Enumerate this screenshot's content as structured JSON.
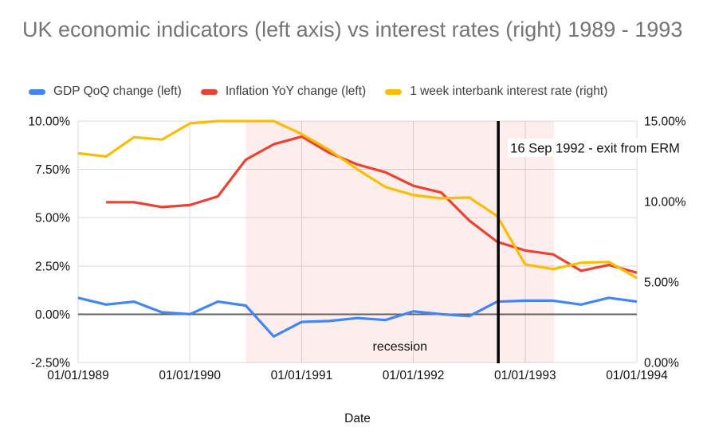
{
  "chart_data": {
    "type": "line",
    "title": "UK economic indicators (left axis) vs interest rates (right) 1989 - 1993",
    "x_axis": {
      "label": "Date",
      "tick_labels": [
        "01/01/1989",
        "01/01/1990",
        "01/01/1991",
        "01/01/1992",
        "01/01/1993",
        "01/01/1994"
      ],
      "tick_years": [
        1989,
        1990,
        1991,
        1992,
        1993,
        1994
      ],
      "range_years": [
        1989,
        1994
      ]
    },
    "left_axis": {
      "tick_labels": [
        "10.00%",
        "7.50%",
        "5.00%",
        "2.50%",
        "0.00%",
        "-2.50%"
      ],
      "tick_values": [
        10,
        7.5,
        5,
        2.5,
        0,
        -2.5
      ],
      "range": [
        -2.5,
        10
      ],
      "zero_line_value": 0
    },
    "right_axis": {
      "tick_labels": [
        "15.00%",
        "10.00%",
        "5.00%",
        "0.00%"
      ],
      "tick_values": [
        15,
        10,
        5,
        0
      ],
      "range": [
        0,
        15
      ]
    },
    "grid": {
      "color": "#D9D9D9",
      "zero_line_color": "#616161"
    },
    "series": [
      {
        "name": "GDP QoQ change (left)",
        "axis": "left",
        "color": "#4285F4",
        "x_years": [
          1989.0,
          1989.25,
          1989.5,
          1989.75,
          1990.0,
          1990.25,
          1990.5,
          1990.75,
          1991.0,
          1991.25,
          1991.5,
          1991.75,
          1992.0,
          1992.25,
          1992.5,
          1992.75,
          1993.0,
          1993.25,
          1993.5,
          1993.75,
          1994.0
        ],
        "values": [
          0.85,
          0.5,
          0.65,
          0.1,
          0.0,
          0.65,
          0.45,
          -1.15,
          -0.4,
          -0.35,
          -0.2,
          -0.3,
          0.15,
          0.0,
          -0.1,
          0.65,
          0.7,
          0.7,
          0.5,
          0.85,
          0.65
        ]
      },
      {
        "name": "Inflation YoY change (left)",
        "axis": "left",
        "color": "#EA4335",
        "x_years": [
          1989.25,
          1989.5,
          1989.75,
          1990.0,
          1990.25,
          1990.5,
          1990.75,
          1991.0,
          1991.25,
          1991.5,
          1991.75,
          1992.0,
          1992.25,
          1992.5,
          1992.75,
          1993.0,
          1993.25,
          1993.5,
          1993.75,
          1994.0
        ],
        "values": [
          5.8,
          5.8,
          5.55,
          5.65,
          6.1,
          8.0,
          8.8,
          9.2,
          8.35,
          7.75,
          7.35,
          6.65,
          6.3,
          4.85,
          3.75,
          3.3,
          3.1,
          2.25,
          2.55,
          2.15
        ]
      },
      {
        "name": "1 week interbank interest rate (right)",
        "axis": "right",
        "color": "#FBBC04",
        "x_years": [
          1989.0,
          1989.25,
          1989.5,
          1989.75,
          1990.0,
          1990.25,
          1990.5,
          1990.75,
          1991.0,
          1991.25,
          1991.5,
          1991.75,
          1992.0,
          1992.25,
          1992.5,
          1992.75,
          1993.0,
          1993.25,
          1993.5,
          1993.75,
          1994.0
        ],
        "values": [
          13.0,
          12.8,
          14.0,
          13.85,
          14.85,
          15.0,
          15.0,
          15.0,
          14.2,
          13.2,
          12.0,
          10.9,
          10.4,
          10.2,
          10.25,
          9.1,
          6.1,
          5.8,
          6.2,
          6.25,
          5.25
        ]
      }
    ],
    "annotations": {
      "recession_band": {
        "label": "recession",
        "from_year": 1990.5,
        "to_year": 1993.26,
        "fill": "rgba(234,67,53,0.09)",
        "label_center_year": 1991.88
      },
      "event_line": {
        "label": "16 Sep 1992 - exit from ERM",
        "x_year": 1992.76,
        "color": "#000000"
      }
    }
  }
}
